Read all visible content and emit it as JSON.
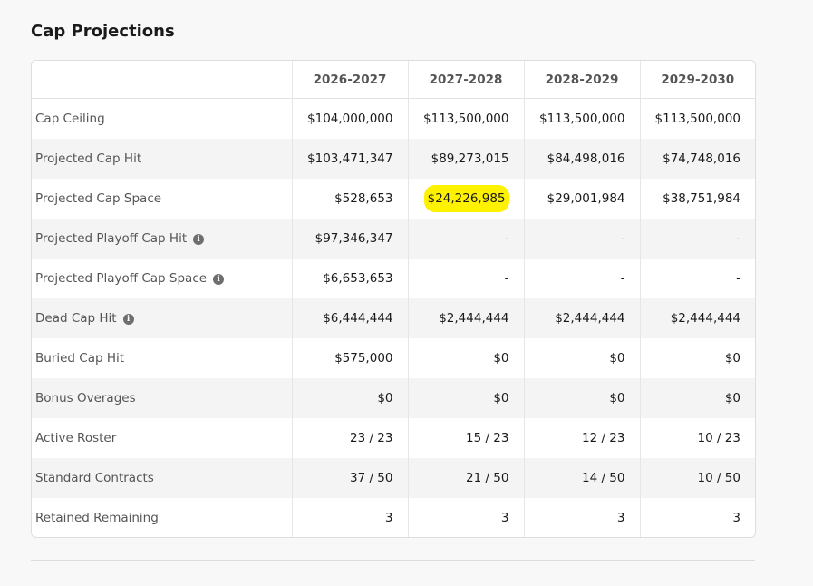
{
  "section": {
    "title": "Cap Projections"
  },
  "table": {
    "columns": [
      "",
      "2026-2027",
      "2027-2028",
      "2028-2029",
      "2029-2030"
    ],
    "rows": [
      {
        "label": "Cap Ceiling",
        "info": false,
        "values": [
          "$104,000,000",
          "$113,500,000",
          "$113,500,000",
          "$113,500,000"
        ]
      },
      {
        "label": "Projected Cap Hit",
        "info": false,
        "values": [
          "$103,471,347",
          "$89,273,015",
          "$84,498,016",
          "$74,748,016"
        ]
      },
      {
        "label": "Projected Cap Space",
        "info": false,
        "values": [
          "$528,653",
          "$24,226,985",
          "$29,001,984",
          "$38,751,984"
        ]
      },
      {
        "label": "Projected Playoff Cap Hit",
        "info": true,
        "values": [
          "$97,346,347",
          "-",
          "-",
          "-"
        ]
      },
      {
        "label": "Projected Playoff Cap Space",
        "info": true,
        "values": [
          "$6,653,653",
          "-",
          "-",
          "-"
        ]
      },
      {
        "label": "Dead Cap Hit",
        "info": true,
        "values": [
          "$6,444,444",
          "$2,444,444",
          "$2,444,444",
          "$2,444,444"
        ]
      },
      {
        "label": "Buried Cap Hit",
        "info": false,
        "values": [
          "$575,000",
          "$0",
          "$0",
          "$0"
        ]
      },
      {
        "label": "Bonus Overages",
        "info": false,
        "values": [
          "$0",
          "$0",
          "$0",
          "$0"
        ]
      },
      {
        "label": "Active Roster",
        "info": false,
        "values": [
          "23 / 23",
          "15 / 23",
          "12 / 23",
          "10 / 23"
        ]
      },
      {
        "label": "Standard Contracts",
        "info": false,
        "values": [
          "37 / 50",
          "21 / 50",
          "14 / 50",
          "10 / 50"
        ]
      },
      {
        "label": "Retained Remaining",
        "info": false,
        "values": [
          "3",
          "3",
          "3",
          "3"
        ]
      }
    ]
  },
  "icons": {
    "info": "info-icon",
    "info_glyph": "i"
  },
  "colors": {
    "highlight": "#fff200",
    "stripe": "#f4f4f4",
    "border": "#dedede"
  }
}
